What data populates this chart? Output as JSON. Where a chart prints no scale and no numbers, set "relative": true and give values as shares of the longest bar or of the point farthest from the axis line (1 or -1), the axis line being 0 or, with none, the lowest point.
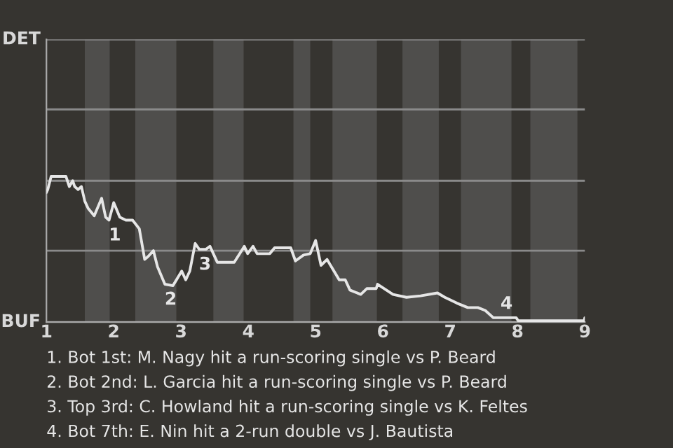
{
  "chart_data": {
    "type": "line",
    "relative": true,
    "x": [
      1,
      1.02,
      1.07,
      1.29,
      1.34,
      1.39,
      1.42,
      1.47,
      1.52,
      1.57,
      1.62,
      1.71,
      1.82,
      1.88,
      1.93,
      2,
      2.09,
      2.18,
      2.28,
      2.38,
      2.46,
      2.51,
      2.59,
      2.65,
      2.76,
      2.88,
      3.01,
      3.07,
      3.13,
      3.21,
      3.27,
      3.37,
      3.43,
      3.54,
      3.79,
      3.94,
      3.99,
      4.07,
      4.13,
      4.32,
      4.39,
      4.63,
      4.7,
      4.82,
      4.92,
      5,
      5.08,
      5.17,
      5.35,
      5.44,
      5.51,
      5.67,
      5.76,
      5.9,
      5.92,
      6.15,
      6.35,
      6.56,
      6.81,
      6.92,
      7.1,
      7.26,
      7.41,
      7.52,
      7.64,
      7.75,
      7.98,
      8.01,
      8.99,
      9
    ],
    "series": [
      {
        "color": "#e6e6e6",
        "values": [
          0.89,
          0.91,
          1,
          1,
          0.93,
          0.97,
          0.93,
          0.91,
          0.93,
          0.83,
          0.78,
          0.73,
          0.85,
          0.72,
          0.7,
          0.82,
          0.72,
          0.7,
          0.7,
          0.64,
          0.43,
          0.45,
          0.49,
          0.38,
          0.26,
          0.25,
          0.35,
          0.29,
          0.35,
          0.54,
          0.5,
          0.5,
          0.52,
          0.41,
          0.41,
          0.52,
          0.47,
          0.52,
          0.47,
          0.47,
          0.51,
          0.51,
          0.42,
          0.46,
          0.47,
          0.56,
          0.39,
          0.43,
          0.29,
          0.29,
          0.22,
          0.19,
          0.23,
          0.23,
          0.26,
          0.19,
          0.17,
          0.18,
          0.2,
          0.17,
          0.13,
          0.1,
          0.1,
          0.08,
          0.03,
          0.03,
          0.03,
          0.01,
          0.01,
          0.03
        ]
      }
    ],
    "xlim": [
      1,
      9
    ],
    "xticks": [
      1,
      2,
      3,
      4,
      5,
      6,
      7,
      8,
      9
    ],
    "grid": false,
    "ref_lines": [
      {
        "axis": "y",
        "value": 0,
        "label": "BUF",
        "color": "#8a8a8a"
      },
      {
        "axis": "y",
        "value": 0.49,
        "color": "#8a8a8a"
      },
      {
        "axis": "y",
        "value": 0.97,
        "color": "#8a8a8a"
      },
      {
        "axis": "y",
        "value": 1.46,
        "color": "#8a8a8a"
      },
      {
        "axis": "y",
        "value": 1.94,
        "label": "DET",
        "color": "#8a8a8a"
      }
    ],
    "bands": [
      {
        "axis": "x",
        "from": 1.57,
        "to": 1.94,
        "color": "#4f4e4c"
      },
      {
        "axis": "x",
        "from": 2.32,
        "to": 2.93,
        "color": "#4f4e4c"
      },
      {
        "axis": "x",
        "from": 3.48,
        "to": 3.93,
        "color": "#4f4e4c"
      },
      {
        "axis": "x",
        "from": 4.67,
        "to": 4.92,
        "color": "#4f4e4c"
      },
      {
        "axis": "x",
        "from": 5.25,
        "to": 5.91,
        "color": "#4f4e4c"
      },
      {
        "axis": "x",
        "from": 6.29,
        "to": 6.83,
        "color": "#4f4e4c"
      },
      {
        "axis": "x",
        "from": 7.16,
        "to": 7.91,
        "color": "#4f4e4c"
      },
      {
        "axis": "x",
        "from": 8.19,
        "to": 8.89,
        "color": "#4f4e4c"
      }
    ],
    "annotations": [
      {
        "text": "1",
        "x": 1.93,
        "y": 0.7
      },
      {
        "text": "2",
        "x": 2.76,
        "y": 0.26
      },
      {
        "text": "3",
        "x": 3.27,
        "y": 0.5
      },
      {
        "text": "4",
        "x": 7.75,
        "y": 0.03
      },
      "1. Bot 1st: M. Nagy hit a run-scoring single vs P. Beard",
      "2. Bot 2nd: L. Garcia hit a run-scoring single vs P. Beard",
      "3. Top 3rd: C. Howland hit a run-scoring single vs K. Feltes",
      "4. Bot 7th: E. Nin hit a 2-run double vs J. Bautista"
    ]
  }
}
